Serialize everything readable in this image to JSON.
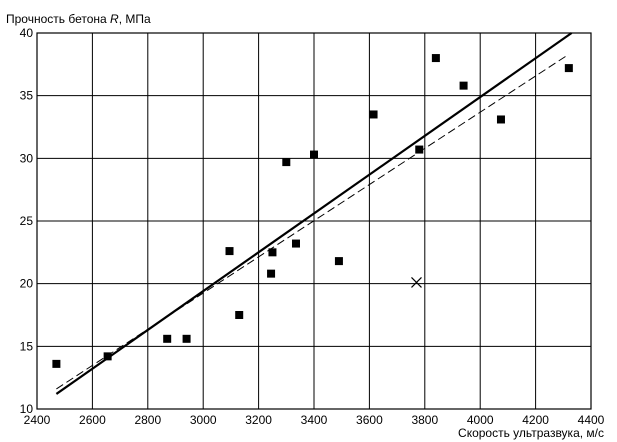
{
  "chart_data": {
    "type": "scatter",
    "ylabel_prefix": "Прочность бетона ",
    "ylabel_symbol": "R",
    "ylabel_suffix": ", МПа",
    "xlabel": "Скорость ультразвука, м/с",
    "xlim": [
      2400,
      4400
    ],
    "ylim": [
      10,
      40
    ],
    "x_ticks": [
      2400,
      2600,
      2800,
      3000,
      3200,
      3400,
      3600,
      3800,
      4000,
      4200,
      4400
    ],
    "y_ticks": [
      10,
      15,
      20,
      25,
      30,
      35,
      40
    ],
    "grid": true,
    "points": [
      {
        "x": 2470,
        "y": 13.6
      },
      {
        "x": 2655,
        "y": 14.2
      },
      {
        "x": 2870,
        "y": 15.6
      },
      {
        "x": 2940,
        "y": 15.6
      },
      {
        "x": 3095,
        "y": 22.6
      },
      {
        "x": 3130,
        "y": 17.5
      },
      {
        "x": 3245,
        "y": 20.8
      },
      {
        "x": 3250,
        "y": 22.5
      },
      {
        "x": 3300,
        "y": 29.7
      },
      {
        "x": 3335,
        "y": 23.2
      },
      {
        "x": 3400,
        "y": 30.3
      },
      {
        "x": 3490,
        "y": 21.8
      },
      {
        "x": 3615,
        "y": 33.5
      },
      {
        "x": 3780,
        "y": 30.7
      },
      {
        "x": 3840,
        "y": 38.0
      },
      {
        "x": 3940,
        "y": 35.8
      },
      {
        "x": 4075,
        "y": 33.1
      },
      {
        "x": 4320,
        "y": 37.2
      }
    ],
    "outliers": [
      {
        "x": 3770,
        "y": 20.1
      }
    ],
    "lines": [
      {
        "style": "solid",
        "x1": 2470,
        "y1": 11.2,
        "x2": 4330,
        "y2": 40.0
      },
      {
        "style": "dashed",
        "x1": 2470,
        "y1": 11.6,
        "x2": 4320,
        "y2": 38.3
      }
    ],
    "colors": {
      "marks": "#000000",
      "grid": "#000000",
      "background": "#ffffff"
    }
  }
}
